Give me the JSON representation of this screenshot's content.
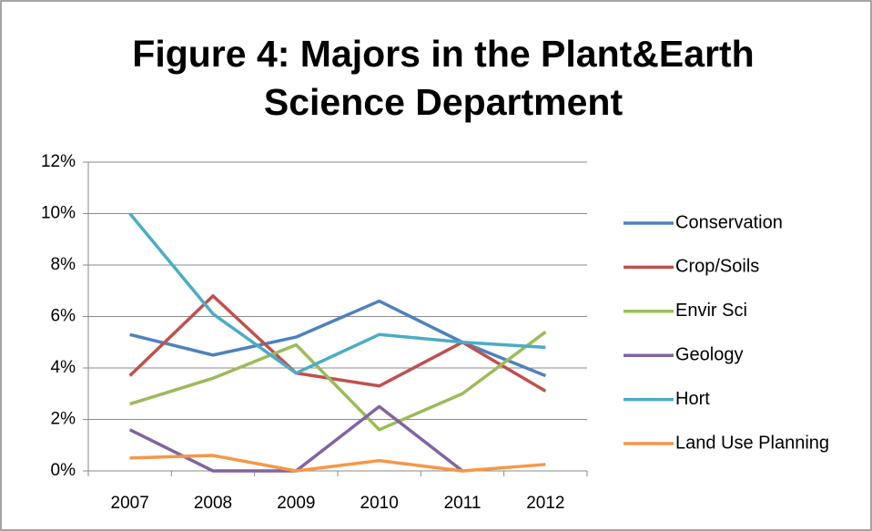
{
  "chart_data": {
    "type": "line",
    "title": [
      "Figure 4: Majors in the Plant&Earth",
      "Science Department"
    ],
    "categories": [
      "2007",
      "2008",
      "2009",
      "2010",
      "2011",
      "2012"
    ],
    "series": [
      {
        "name": "Conservation",
        "color": "#4F81BD",
        "values": [
          5.3,
          4.5,
          5.2,
          6.6,
          5.0,
          3.7
        ]
      },
      {
        "name": "Crop/Soils",
        "color": "#C0504D",
        "values": [
          3.7,
          6.8,
          3.8,
          3.3,
          5.0,
          3.1
        ]
      },
      {
        "name": "Envir Sci",
        "color": "#9BBB59",
        "values": [
          2.6,
          3.6,
          4.9,
          1.6,
          3.0,
          5.4
        ]
      },
      {
        "name": "Geology",
        "color": "#8064A2",
        "values": [
          1.6,
          0,
          0,
          2.5,
          0,
          null
        ]
      },
      {
        "name": "Hort",
        "color": "#4BACC6",
        "values": [
          10.0,
          6.1,
          3.8,
          5.3,
          5.0,
          4.8
        ]
      },
      {
        "name": "Land Use Planning",
        "color": "#F79646",
        "values": [
          0.5,
          0.6,
          0,
          0.4,
          0,
          0.25
        ]
      }
    ],
    "ylim": [
      0,
      12
    ],
    "yticks": [
      {
        "value": 0,
        "label": "0%"
      },
      {
        "value": 2,
        "label": "2%"
      },
      {
        "value": 4,
        "label": "4%"
      },
      {
        "value": 6,
        "label": "6%"
      },
      {
        "value": 8,
        "label": "8%"
      },
      {
        "value": 10,
        "label": "10%"
      },
      {
        "value": 12,
        "label": "12%"
      }
    ],
    "grid": true,
    "legend": "right"
  }
}
